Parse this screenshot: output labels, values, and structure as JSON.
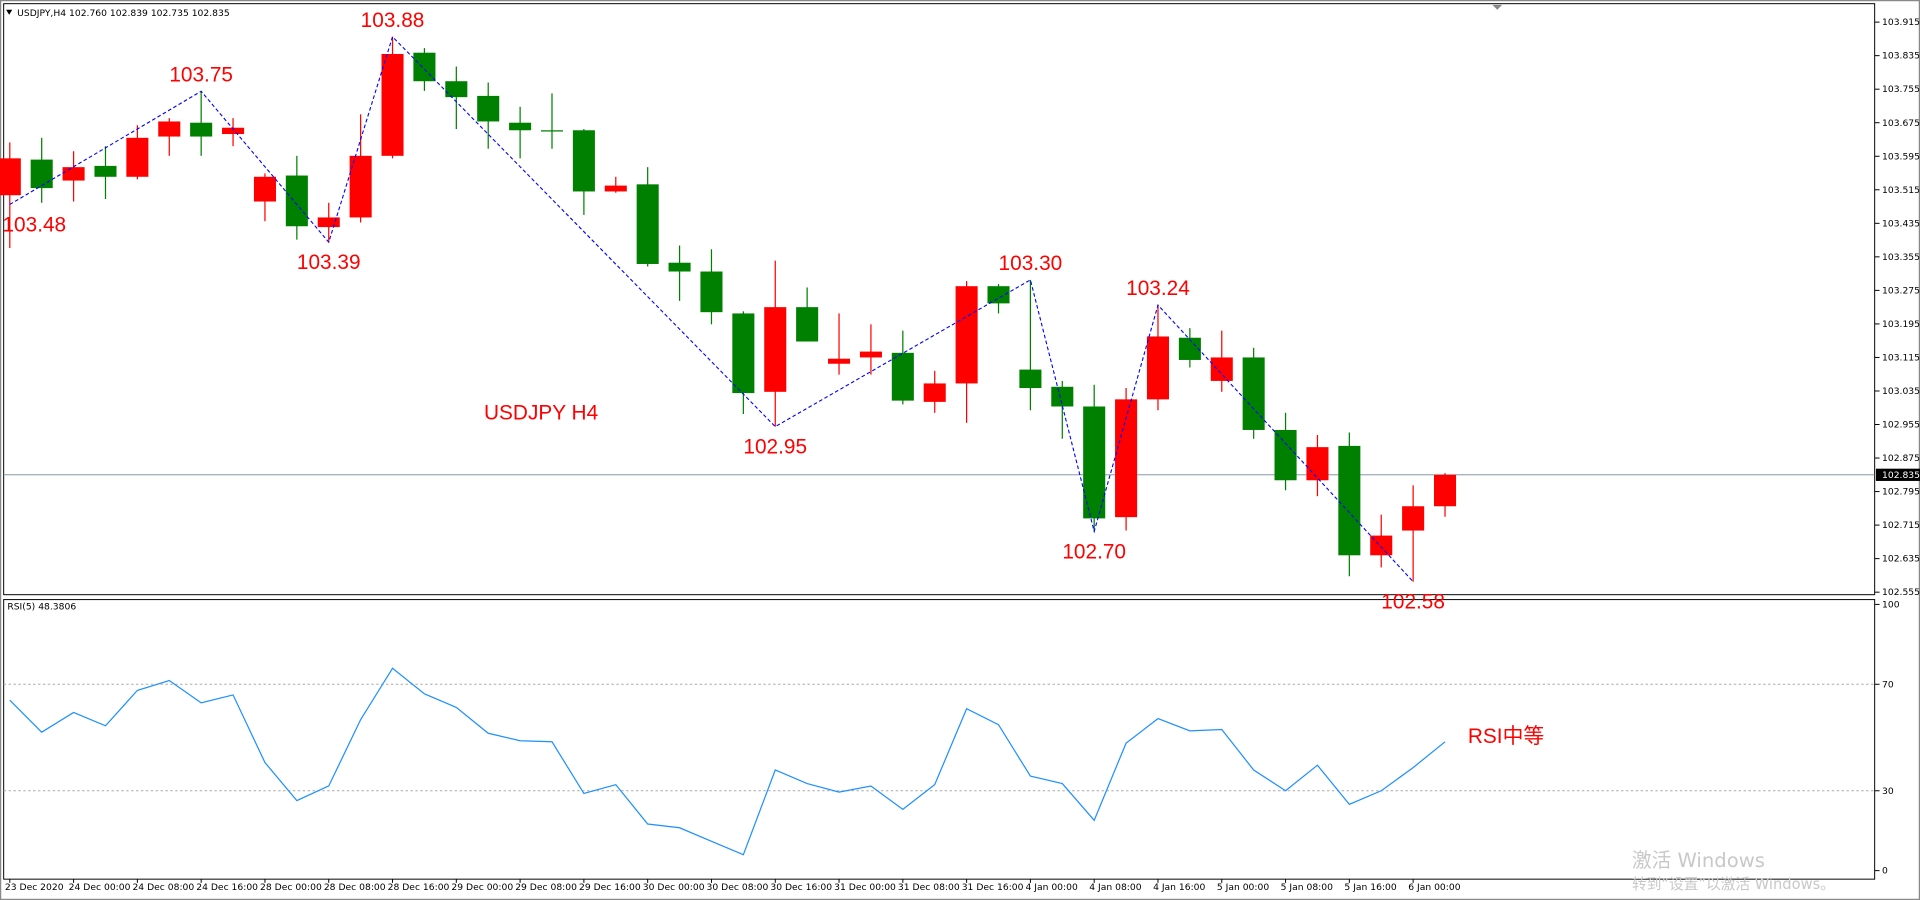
{
  "chart_data": [
    {
      "type": "candlestick",
      "info": "USDJPY,H4  102.760 102.839 102.735 102.835",
      "annotation": "USDJPY H4",
      "up_color": "#ff0000",
      "down_color": "#008000",
      "categories": [
        "23 Dec 2020",
        null,
        "24 Dec 00:00",
        null,
        "24 Dec 08:00",
        null,
        "24 Dec 16:00",
        null,
        "28 Dec 00:00",
        null,
        "28 Dec 08:00",
        null,
        "28 Dec 16:00",
        null,
        "29 Dec 00:00",
        null,
        "29 Dec 08:00",
        null,
        "29 Dec 16:00",
        null,
        "30 Dec 00:00",
        null,
        "30 Dec 08:00",
        null,
        "30 Dec 16:00",
        null,
        "31 Dec 00:00",
        null,
        "31 Dec 08:00",
        null,
        "31 Dec 16:00",
        null,
        "4 Jan 00:00",
        null,
        "4 Jan 08:00",
        null,
        "4 Jan 16:00",
        null,
        "5 Jan 00:00",
        null,
        "5 Jan 08:00",
        null,
        "5 Jan 16:00",
        null,
        "6 Jan 00:00",
        null
      ],
      "open": [
        103.502,
        103.587,
        103.537,
        103.572,
        103.546,
        103.642,
        103.675,
        103.648,
        103.487,
        103.549,
        103.426,
        103.449,
        103.596,
        103.842,
        103.774,
        103.739,
        103.675,
        103.657,
        103.657,
        103.511,
        103.528,
        103.341,
        103.32,
        103.22,
        103.033,
        103.235,
        103.1,
        103.115,
        103.126,
        103.009,
        103.053,
        103.285,
        103.086,
        103.045,
        102.998,
        102.734,
        103.015,
        103.162,
        103.059,
        103.115,
        102.942,
        102.822,
        102.904,
        102.643,
        102.702,
        102.76
      ],
      "high": [
        103.628,
        103.639,
        103.607,
        103.619,
        103.669,
        103.686,
        103.751,
        103.686,
        103.554,
        103.596,
        103.484,
        103.695,
        103.88,
        103.853,
        103.809,
        103.771,
        103.713,
        103.745,
        103.66,
        103.546,
        103.569,
        103.382,
        103.373,
        103.225,
        103.346,
        103.282,
        103.22,
        103.194,
        103.179,
        103.083,
        103.297,
        103.29,
        103.3,
        103.059,
        103.05,
        103.042,
        103.24,
        103.185,
        103.179,
        103.138,
        102.983,
        102.93,
        102.936,
        102.74,
        102.81,
        102.839
      ],
      "low": [
        103.376,
        103.484,
        103.487,
        103.493,
        103.54,
        103.596,
        103.596,
        103.619,
        103.44,
        103.396,
        103.39,
        103.437,
        103.59,
        103.751,
        103.66,
        103.613,
        103.59,
        103.613,
        103.455,
        103.508,
        103.332,
        103.25,
        103.194,
        102.98,
        102.95,
        103.153,
        103.074,
        103.074,
        103.003,
        102.983,
        102.959,
        103.22,
        102.989,
        102.921,
        102.7,
        102.702,
        102.989,
        103.091,
        103.033,
        102.921,
        102.798,
        102.784,
        102.593,
        102.614,
        102.58,
        102.735
      ],
      "close": [
        103.59,
        103.519,
        103.569,
        103.546,
        103.639,
        103.678,
        103.642,
        103.663,
        103.546,
        103.428,
        103.449,
        103.596,
        103.839,
        103.774,
        103.736,
        103.678,
        103.657,
        103.654,
        103.511,
        103.525,
        103.338,
        103.32,
        103.223,
        103.03,
        103.235,
        103.153,
        103.112,
        103.129,
        103.012,
        103.053,
        103.285,
        103.244,
        103.042,
        102.998,
        102.731,
        103.015,
        103.165,
        103.109,
        103.115,
        102.942,
        102.822,
        102.901,
        102.643,
        102.69,
        102.76,
        102.835
      ],
      "ylim": [
        102.549,
        103.959
      ],
      "yticks": [
        103.915,
        103.835,
        103.755,
        103.675,
        103.595,
        103.515,
        103.435,
        103.355,
        103.275,
        103.195,
        103.115,
        103.035,
        102.955,
        102.875,
        102.795,
        102.715,
        102.635,
        102.555
      ],
      "bid_line": {
        "value": 102.835,
        "label": "102.835"
      },
      "zigzag": {
        "color": "#0000ff",
        "x": [
          0,
          6,
          10,
          12,
          24,
          32,
          34,
          36,
          44
        ],
        "values": [
          103.48,
          103.75,
          103.39,
          103.88,
          102.95,
          103.3,
          102.7,
          103.24,
          102.58
        ],
        "value_labels": [
          "103.48",
          "103.75",
          "103.39",
          "103.88",
          "102.95",
          "103.30",
          "102.70",
          "103.24",
          "102.58"
        ]
      }
    },
    {
      "type": "line",
      "title": "RSI(5) 48.3806",
      "annotation": "RSI中等",
      "color": "#1e90ff",
      "values": [
        64,
        52,
        59.4,
        54.4,
        67.7,
        71.4,
        63,
        66,
        40.6,
        26.3,
        31.8,
        56.7,
        76,
        66.4,
        61.3,
        51.6,
        48.8,
        48.4,
        29,
        32.3,
        17.5,
        16.1,
        11,
        6,
        37.8,
        32.7,
        29.5,
        31.8,
        23,
        32.3,
        60.8,
        54.8,
        35.5,
        32.7,
        18.9,
        47.9,
        57.1,
        52.5,
        53,
        37.8,
        30,
        39.6,
        24.9,
        30,
        38.7,
        48.38
      ],
      "ylim": [
        -3.2,
        101.8
      ],
      "yticks": [
        0,
        30,
        70,
        100
      ]
    }
  ],
  "watermark": {
    "line1": "激活 Windows",
    "line2": "转到“设置”以激活 Windows。"
  }
}
